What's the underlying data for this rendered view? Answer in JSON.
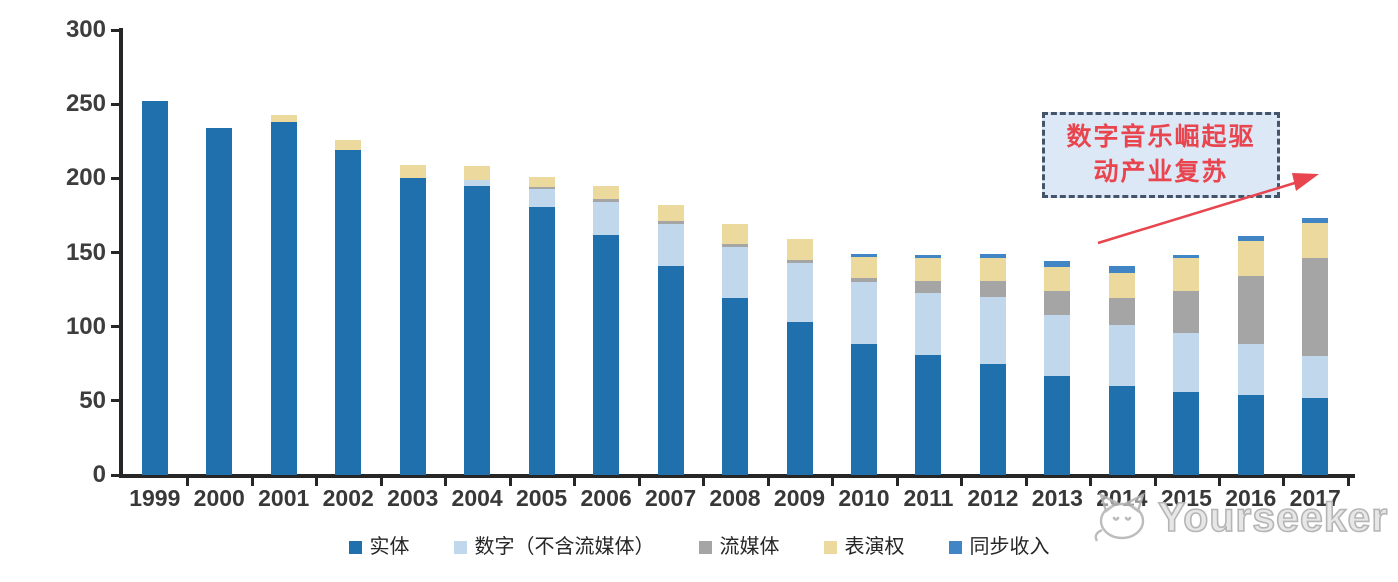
{
  "chart_data": {
    "type": "bar",
    "stacked": true,
    "categories": [
      "1999",
      "2000",
      "2001",
      "2002",
      "2003",
      "2004",
      "2005",
      "2006",
      "2007",
      "2008",
      "2009",
      "2010",
      "2011",
      "2012",
      "2013",
      "2014",
      "2015",
      "2016",
      "2017"
    ],
    "series": [
      {
        "name": "实体",
        "color": "#2070AE",
        "values": [
          252,
          234,
          238,
          219,
          200,
          195,
          181,
          162,
          141,
          119,
          103,
          88,
          81,
          75,
          67,
          60,
          56,
          54,
          52
        ]
      },
      {
        "name": "数字（不含流媒体）",
        "color": "#C1D7EC",
        "values": [
          0,
          0,
          0,
          0,
          0,
          4,
          12,
          22,
          28,
          35,
          40,
          42,
          42,
          45,
          41,
          41,
          40,
          34,
          28
        ]
      },
      {
        "name": "流媒体",
        "color": "#A5A5A5",
        "values": [
          0,
          0,
          0,
          0,
          0,
          0,
          1,
          2,
          2,
          2,
          2,
          3,
          8,
          11,
          16,
          18,
          28,
          46,
          66
        ]
      },
      {
        "name": "表演权",
        "color": "#EBD99E",
        "values": [
          0,
          0,
          5,
          7,
          9,
          9,
          7,
          9,
          11,
          13,
          14,
          14,
          15,
          15,
          16,
          17,
          22,
          24,
          24
        ]
      },
      {
        "name": "同步收入",
        "color": "#4285C4",
        "values": [
          0,
          0,
          0,
          0,
          0,
          0,
          0,
          0,
          0,
          0,
          0,
          2,
          2,
          3,
          4,
          5,
          2,
          3,
          3
        ]
      }
    ],
    "ylim": [
      0,
      300
    ],
    "y_ticks": [
      0,
      50,
      100,
      150,
      200,
      250,
      300
    ],
    "grid": false,
    "legend_position": "bottom",
    "title": ""
  },
  "annotation": {
    "line1": "数字音乐崛起驱",
    "line2": "动产业复苏",
    "text_color": "#E8454F",
    "box_fill": "#DCE8F6",
    "box_border_color": "#44546A",
    "arrow_color": "#E8454F"
  },
  "watermark": {
    "text": "Yourseeker",
    "logo": "cat-icon",
    "color": "#b5b5b5"
  },
  "axis": {
    "color": "#262626",
    "tick_label_color": "#3d3d3d"
  }
}
